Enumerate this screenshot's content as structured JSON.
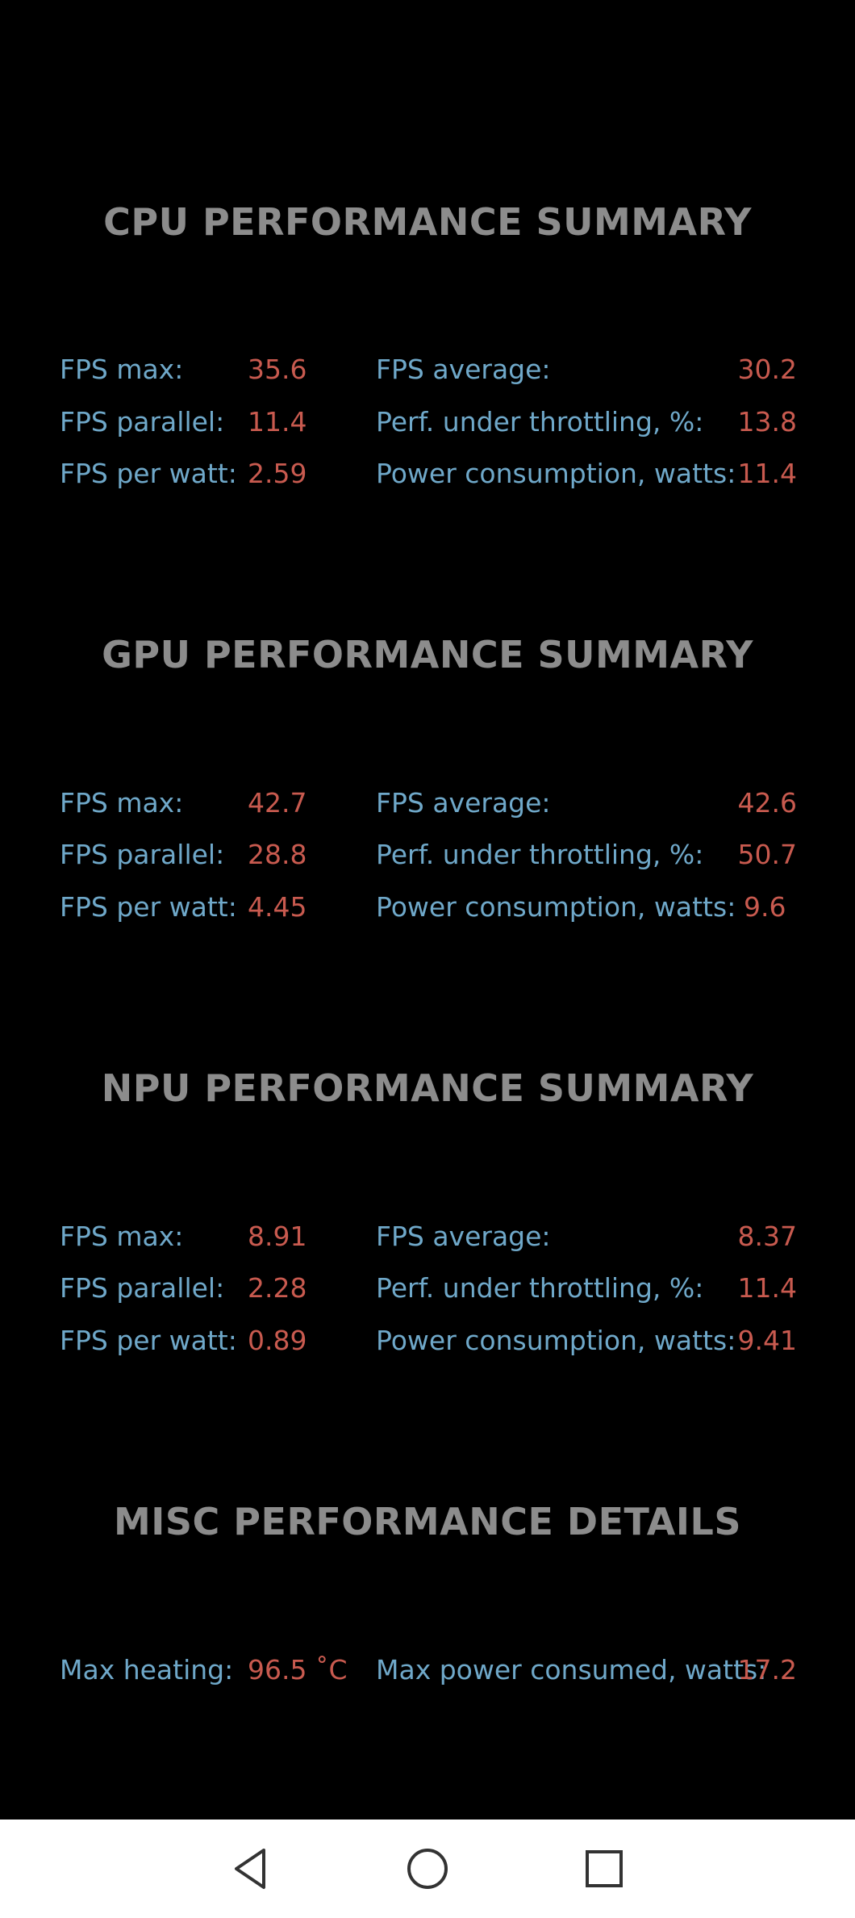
{
  "sections": [
    {
      "title": "CPU PERFORMANCE SUMMARY",
      "rows": [
        {
          "l1": "FPS max:",
          "v1": "35.6",
          "l2": "FPS average:",
          "v2": "30.2"
        },
        {
          "l1": "FPS parallel:",
          "v1": "11.4",
          "l2": "Perf. under throttling, %:",
          "v2": "13.8"
        },
        {
          "l1": "FPS per watt:",
          "v1": "2.59",
          "l2": "Power consumption, watts:",
          "v2": "11.4"
        }
      ]
    },
    {
      "title": "GPU PERFORMANCE SUMMARY",
      "rows": [
        {
          "l1": "FPS max:",
          "v1": "42.7",
          "l2": "FPS average:",
          "v2": "42.6"
        },
        {
          "l1": "FPS parallel:",
          "v1": "28.8",
          "l2": "Perf. under throttling, %:",
          "v2": "50.7"
        },
        {
          "l1": "FPS per watt:",
          "v1": "4.45",
          "l2": "Power consumption, watts:",
          "v2": "9.6"
        }
      ]
    },
    {
      "title": "NPU PERFORMANCE SUMMARY",
      "rows": [
        {
          "l1": "FPS max:",
          "v1": "8.91",
          "l2": "FPS average:",
          "v2": "8.37"
        },
        {
          "l1": "FPS parallel:",
          "v1": "2.28",
          "l2": "Perf. under throttling, %:",
          "v2": "11.4"
        },
        {
          "l1": "FPS per watt:",
          "v1": "0.89",
          "l2": "Power consumption, watts:",
          "v2": "9.41"
        }
      ]
    },
    {
      "title": "MISC PERFORMANCE DETAILS",
      "rows": [
        {
          "l1": "Max heating:",
          "v1": "96.5 ˚C",
          "l2": "Max power consumed, watts:",
          "v2": "17.2"
        }
      ]
    }
  ],
  "navbar": {
    "icons": [
      "back-triangle-icon",
      "home-circle-icon",
      "recents-square-icon"
    ]
  },
  "colors": {
    "background": "#000000",
    "title": "#8c8c8c",
    "label": "#6fa8c9",
    "value": "#c85a4f",
    "navbar": "#ffffff"
  }
}
